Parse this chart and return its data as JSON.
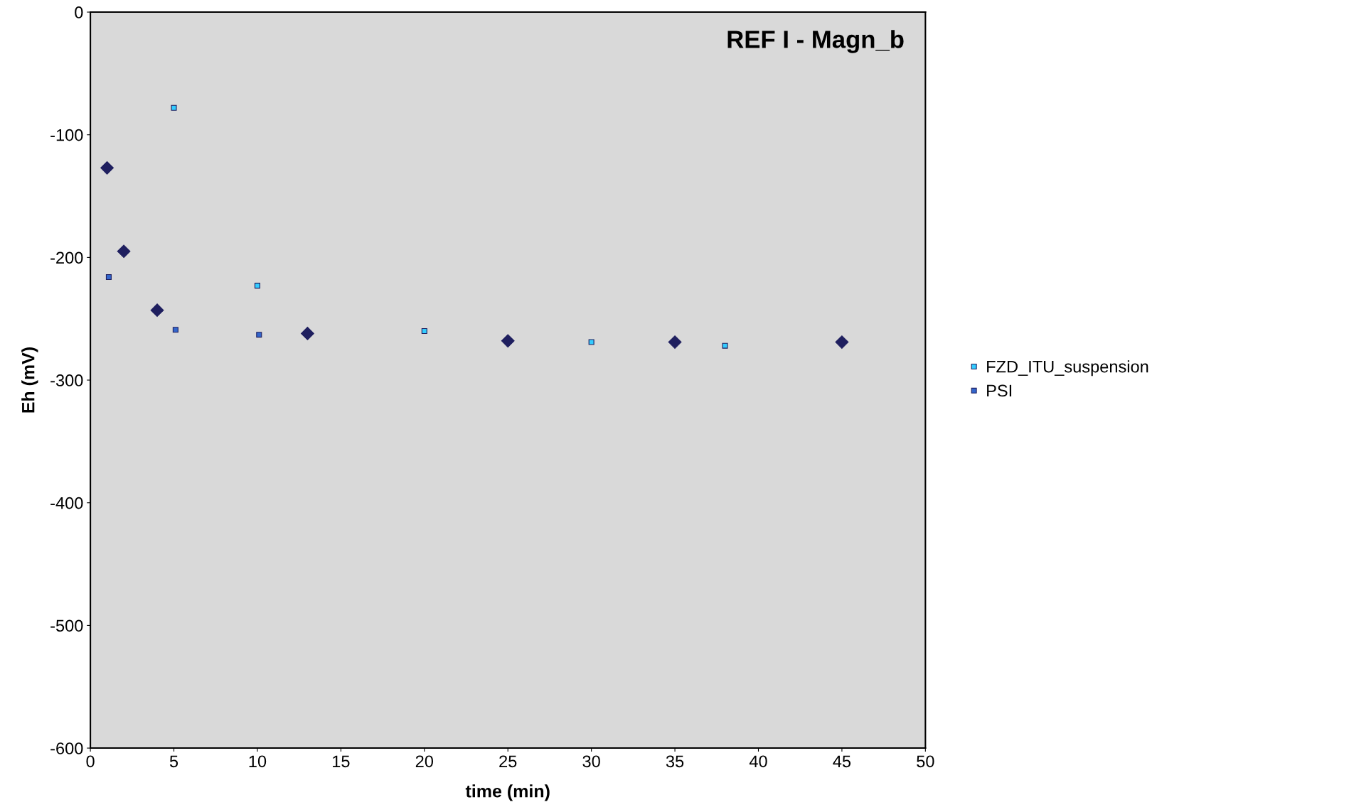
{
  "chart_data": {
    "type": "scatter",
    "title": "REF I - Magn_b",
    "xlabel": "time (min)",
    "ylabel": "Eh (mV)",
    "xlim": [
      0,
      50
    ],
    "xticks": [
      0,
      5,
      10,
      15,
      20,
      25,
      30,
      35,
      40,
      45,
      50
    ],
    "ylim": [
      -600,
      0
    ],
    "yticks": [
      -600,
      -500,
      -400,
      -300,
      -200,
      -100,
      0
    ],
    "grid": false,
    "legend": "right",
    "series": [
      {
        "color": "#1f1f5f",
        "marker": "diamond",
        "x": [
          1,
          2,
          4,
          13,
          25,
          35,
          45
        ],
        "values": [
          -127,
          -195,
          -243,
          -262,
          -268,
          -269,
          -269
        ]
      },
      {
        "name": "FZD_ITU_suspension",
        "color": "#33ccff",
        "marker": "square",
        "x": [
          5,
          10,
          20,
          30,
          38
        ],
        "values": [
          -78,
          -223,
          -260,
          -269,
          -272
        ]
      },
      {
        "name": "PSI",
        "color": "#3366cc",
        "marker": "square",
        "x": [
          1.1,
          5.1,
          10.1
        ],
        "values": [
          -216,
          -259,
          -263
        ]
      }
    ]
  }
}
